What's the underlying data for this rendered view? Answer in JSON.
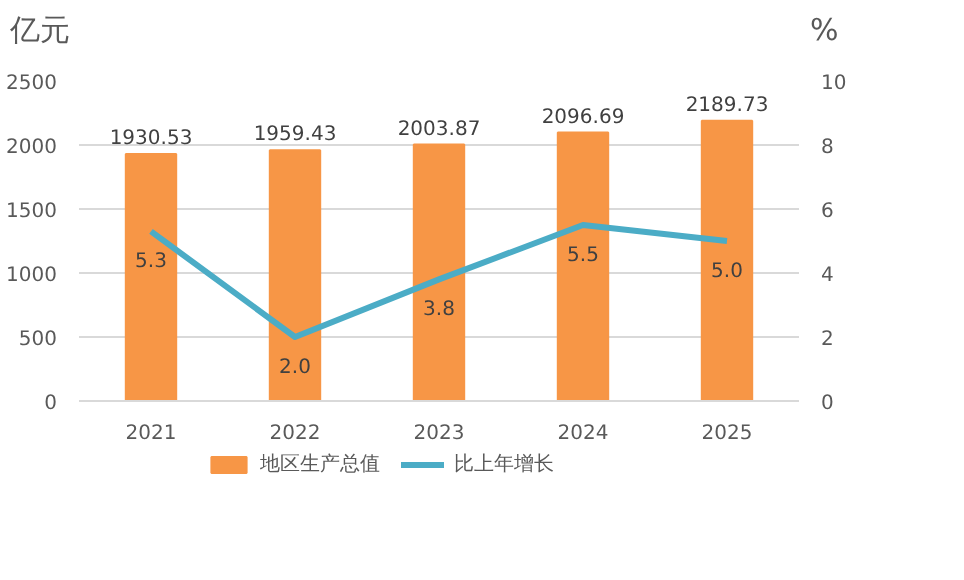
{
  "chart_data": {
    "type": "bar",
    "categories": [
      "2021",
      "2022",
      "2023",
      "2024",
      "2025"
    ],
    "ylabel": "亿元",
    "y2label": "%",
    "series": [
      {
        "name": "地区生产总值",
        "color": "#f79646",
        "values": [
          1930.53,
          1959.43,
          2003.87,
          2096.69,
          2189.73
        ]
      },
      {
        "name": "比上年增长",
        "type": "line",
        "axis": "y2",
        "color": "#4bacc6",
        "values": [
          5.3,
          2.0,
          3.8,
          5.5,
          5.0
        ],
        "value_labels": [
          "5.3",
          "2.0",
          "3.8",
          "5.5",
          "5.0"
        ]
      }
    ],
    "ylim": [
      0,
      2500
    ],
    "yticks": [
      0,
      500,
      1000,
      1500,
      2000,
      2500
    ],
    "y2lim": [
      0,
      10
    ],
    "y2ticks": [
      0,
      2,
      4,
      6,
      8,
      10
    ],
    "grid": "y",
    "legend": "bottom",
    "data_labels": true,
    "marker": "none",
    "line_style": "solid"
  }
}
